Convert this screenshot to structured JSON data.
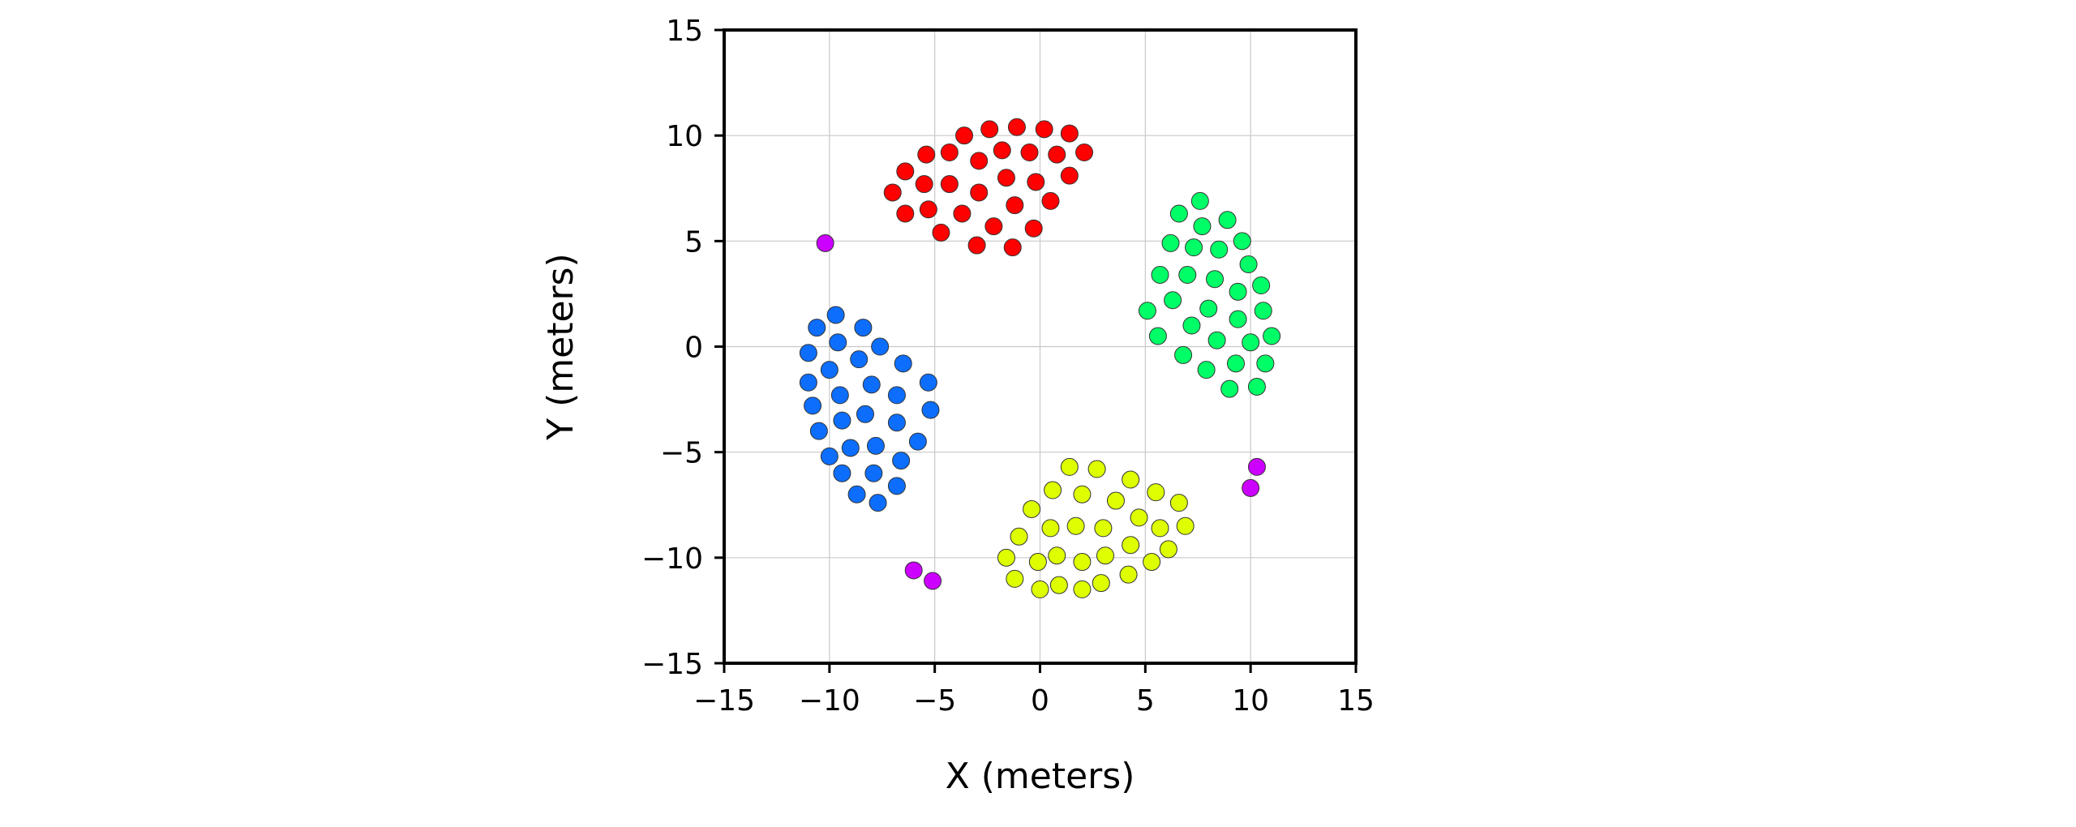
{
  "chart_data": {
    "type": "scatter",
    "title": "",
    "xlabel": "X (meters)",
    "ylabel": "Y (meters)",
    "xlim": [
      -15,
      15
    ],
    "ylim": [
      -15,
      15
    ],
    "xticks": [
      -15,
      -10,
      -5,
      0,
      5,
      10,
      15
    ],
    "yticks": [
      -15,
      -10,
      -5,
      0,
      5,
      10,
      15
    ],
    "xtick_labels": [
      "−15",
      "−10",
      "−5",
      "0",
      "5",
      "10",
      "15"
    ],
    "ytick_labels": [
      "−15",
      "−10",
      "−5",
      "0",
      "5",
      "10",
      "15"
    ],
    "grid": true,
    "legend": "none",
    "series": [
      {
        "color": "#ff0000",
        "points": [
          [
            -2.4,
            10.3
          ],
          [
            -1.1,
            10.4
          ],
          [
            0.2,
            10.3
          ],
          [
            1.4,
            10.1
          ],
          [
            -3.6,
            10.0
          ],
          [
            -4.3,
            9.2
          ],
          [
            -5.4,
            9.1
          ],
          [
            -1.8,
            9.3
          ],
          [
            -0.5,
            9.2
          ],
          [
            0.8,
            9.1
          ],
          [
            2.1,
            9.2
          ],
          [
            -6.4,
            8.3
          ],
          [
            -2.9,
            8.8
          ],
          [
            -1.6,
            8.0
          ],
          [
            -0.2,
            7.8
          ],
          [
            1.4,
            8.1
          ],
          [
            -5.5,
            7.7
          ],
          [
            -4.3,
            7.7
          ],
          [
            -2.9,
            7.3
          ],
          [
            -7.0,
            7.3
          ],
          [
            0.5,
            6.9
          ],
          [
            -6.4,
            6.3
          ],
          [
            -5.3,
            6.5
          ],
          [
            -3.7,
            6.3
          ],
          [
            -1.2,
            6.7
          ],
          [
            -4.7,
            5.4
          ],
          [
            -2.2,
            5.7
          ],
          [
            -0.3,
            5.6
          ],
          [
            -3.0,
            4.8
          ],
          [
            -1.3,
            4.7
          ]
        ]
      },
      {
        "color": "#00ff66",
        "points": [
          [
            7.6,
            6.9
          ],
          [
            6.6,
            6.3
          ],
          [
            8.9,
            6.0
          ],
          [
            7.7,
            5.7
          ],
          [
            6.2,
            4.9
          ],
          [
            7.3,
            4.7
          ],
          [
            8.5,
            4.6
          ],
          [
            9.6,
            5.0
          ],
          [
            9.9,
            3.9
          ],
          [
            5.7,
            3.4
          ],
          [
            7.0,
            3.4
          ],
          [
            8.3,
            3.2
          ],
          [
            9.4,
            2.6
          ],
          [
            10.5,
            2.9
          ],
          [
            6.3,
            2.2
          ],
          [
            8.0,
            1.8
          ],
          [
            5.1,
            1.7
          ],
          [
            10.6,
            1.7
          ],
          [
            9.4,
            1.3
          ],
          [
            7.2,
            1.0
          ],
          [
            5.6,
            0.5
          ],
          [
            8.4,
            0.3
          ],
          [
            10.0,
            0.2
          ],
          [
            11.0,
            0.5
          ],
          [
            6.8,
            -0.4
          ],
          [
            9.3,
            -0.8
          ],
          [
            10.7,
            -0.8
          ],
          [
            7.9,
            -1.1
          ],
          [
            9.0,
            -2.0
          ],
          [
            10.3,
            -1.9
          ]
        ]
      },
      {
        "color": "#0d6efd",
        "points": [
          [
            -9.7,
            1.5
          ],
          [
            -10.6,
            0.9
          ],
          [
            -8.4,
            0.9
          ],
          [
            -9.6,
            0.2
          ],
          [
            -7.6,
            0.0
          ],
          [
            -11.0,
            -0.3
          ],
          [
            -8.6,
            -0.6
          ],
          [
            -6.5,
            -0.8
          ],
          [
            -10.0,
            -1.1
          ],
          [
            -11.0,
            -1.7
          ],
          [
            -8.0,
            -1.8
          ],
          [
            -5.3,
            -1.7
          ],
          [
            -9.5,
            -2.3
          ],
          [
            -6.8,
            -2.3
          ],
          [
            -10.8,
            -2.8
          ],
          [
            -8.3,
            -3.2
          ],
          [
            -5.2,
            -3.0
          ],
          [
            -9.4,
            -3.5
          ],
          [
            -6.8,
            -3.6
          ],
          [
            -10.5,
            -4.0
          ],
          [
            -7.8,
            -4.7
          ],
          [
            -5.8,
            -4.5
          ],
          [
            -9.0,
            -4.8
          ],
          [
            -10.0,
            -5.2
          ],
          [
            -6.6,
            -5.4
          ],
          [
            -9.4,
            -6.0
          ],
          [
            -7.9,
            -6.0
          ],
          [
            -6.8,
            -6.6
          ],
          [
            -8.7,
            -7.0
          ],
          [
            -7.7,
            -7.4
          ]
        ]
      },
      {
        "color": "#ddff00",
        "points": [
          [
            1.4,
            -5.7
          ],
          [
            2.7,
            -5.8
          ],
          [
            4.3,
            -6.3
          ],
          [
            0.6,
            -6.8
          ],
          [
            5.5,
            -6.9
          ],
          [
            2.0,
            -7.0
          ],
          [
            6.6,
            -7.4
          ],
          [
            -0.4,
            -7.7
          ],
          [
            3.6,
            -7.3
          ],
          [
            4.7,
            -8.1
          ],
          [
            0.5,
            -8.6
          ],
          [
            1.7,
            -8.5
          ],
          [
            3.0,
            -8.6
          ],
          [
            5.7,
            -8.6
          ],
          [
            6.9,
            -8.5
          ],
          [
            -1.0,
            -9.0
          ],
          [
            4.3,
            -9.4
          ],
          [
            6.1,
            -9.6
          ],
          [
            0.8,
            -9.9
          ],
          [
            2.0,
            -10.2
          ],
          [
            3.1,
            -9.9
          ],
          [
            -1.6,
            -10.0
          ],
          [
            -0.1,
            -10.2
          ],
          [
            5.3,
            -10.2
          ],
          [
            4.2,
            -10.8
          ],
          [
            -1.2,
            -11.0
          ],
          [
            0.9,
            -11.3
          ],
          [
            2.9,
            -11.2
          ],
          [
            0.0,
            -11.5
          ],
          [
            2.0,
            -11.5
          ]
        ]
      },
      {
        "color": "#cc00ff",
        "points": [
          [
            -10.2,
            4.9
          ],
          [
            -6.0,
            -10.6
          ],
          [
            -5.1,
            -11.1
          ],
          [
            10.3,
            -5.7
          ],
          [
            10.0,
            -6.7
          ]
        ]
      }
    ]
  }
}
